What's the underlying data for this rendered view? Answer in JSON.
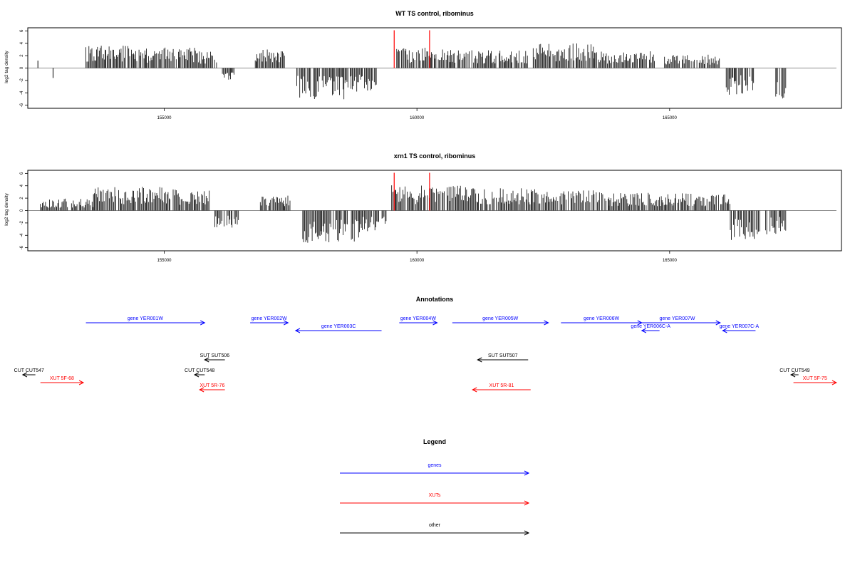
{
  "chart_data": [
    {
      "type": "bar",
      "title": "WT TS control, ribominus",
      "xlabel": "",
      "ylabel": "log2 tag density",
      "xlim": [
        152300,
        168400
      ],
      "ylim": [
        -6.5,
        6.5
      ],
      "xticks": [
        155000,
        160000,
        165000
      ],
      "xtick_labels": [
        "155000",
        "160000",
        "165000"
      ],
      "yticks": [
        6,
        4,
        2,
        0,
        -2,
        -4,
        -6
      ],
      "ytick_labels": [
        "6",
        "4",
        "2",
        "0",
        "-2",
        "-4",
        "-6"
      ],
      "baseline": {
        "from": 152300,
        "to": 168300,
        "y": 0
      },
      "markers": [
        159550,
        160250
      ],
      "marker_color": "#ff0000",
      "bar_color": "#000000",
      "segments": [
        {
          "from": 152500,
          "to": 152500,
          "y": 1.2
        },
        {
          "from": 152800,
          "to": 152800,
          "y": -1.6
        },
        {
          "from": 153450,
          "to": 154400,
          "y": 3.0
        },
        {
          "from": 154400,
          "to": 155700,
          "y": 2.8
        },
        {
          "from": 155700,
          "to": 156050,
          "y": 2.2
        },
        {
          "from": 156150,
          "to": 156400,
          "y": -2.0
        },
        {
          "from": 156800,
          "to": 157400,
          "y": 2.6
        },
        {
          "from": 157600,
          "to": 158700,
          "y": -4.2
        },
        {
          "from": 158700,
          "to": 159200,
          "y": -3.2
        },
        {
          "from": 159600,
          "to": 160700,
          "y": 2.8
        },
        {
          "from": 160700,
          "to": 162200,
          "y": 2.4
        },
        {
          "from": 162300,
          "to": 163500,
          "y": 3.4
        },
        {
          "from": 163500,
          "to": 164700,
          "y": 2.4
        },
        {
          "from": 164900,
          "to": 166000,
          "y": 1.8
        },
        {
          "from": 166100,
          "to": 166700,
          "y": -3.6
        },
        {
          "from": 167100,
          "to": 167300,
          "y": -4.8
        }
      ]
    },
    {
      "type": "bar",
      "title": "xrn1 TS control, ribominus",
      "xlabel": "",
      "ylabel": "log2 tag density",
      "xlim": [
        152300,
        168400
      ],
      "ylim": [
        -6.5,
        6.5
      ],
      "xticks": [
        155000,
        160000,
        165000
      ],
      "xtick_labels": [
        "155000",
        "160000",
        "165000"
      ],
      "yticks": [
        6,
        4,
        2,
        0,
        -2,
        -4,
        -6
      ],
      "ytick_labels": [
        "6",
        "4",
        "2",
        "0",
        "-2",
        "-4",
        "-6"
      ],
      "baseline": {
        "from": 152300,
        "to": 168300,
        "y": 0
      },
      "markers": [
        159550,
        160250
      ],
      "marker_color": "#ff0000",
      "bar_color": "#000000",
      "segments": [
        {
          "from": 152550,
          "to": 153000,
          "y": 1.5
        },
        {
          "from": 153000,
          "to": 153600,
          "y": 1.6
        },
        {
          "from": 153600,
          "to": 155000,
          "y": 3.2
        },
        {
          "from": 155000,
          "to": 155900,
          "y": 3.0
        },
        {
          "from": 156000,
          "to": 156500,
          "y": -2.4
        },
        {
          "from": 156900,
          "to": 157500,
          "y": 2.2
        },
        {
          "from": 157700,
          "to": 158900,
          "y": -4.4
        },
        {
          "from": 158900,
          "to": 159400,
          "y": -2.8
        },
        {
          "from": 159500,
          "to": 161000,
          "y": 3.4
        },
        {
          "from": 161000,
          "to": 162600,
          "y": 3.2
        },
        {
          "from": 162600,
          "to": 163800,
          "y": 2.8
        },
        {
          "from": 163800,
          "to": 165500,
          "y": 2.4
        },
        {
          "from": 165500,
          "to": 166200,
          "y": 2.2
        },
        {
          "from": 166200,
          "to": 166800,
          "y": -4.0
        },
        {
          "from": 166900,
          "to": 167300,
          "y": -3.2
        }
      ]
    },
    {
      "type": "annotation_track",
      "title": "Annotations",
      "xlim": [
        152300,
        168400
      ],
      "features": [
        {
          "label": "gene YER001W",
          "from": 153450,
          "to": 155800,
          "strand": "+",
          "row": 1,
          "color": "#0000ff"
        },
        {
          "label": "gene YER002W",
          "from": 156700,
          "to": 157450,
          "strand": "+",
          "row": 1,
          "color": "#0000ff"
        },
        {
          "label": "gene YER003C",
          "from": 157600,
          "to": 159300,
          "strand": "-",
          "row": 2,
          "color": "#0000ff"
        },
        {
          "label": "gene YER004W",
          "from": 159650,
          "to": 160400,
          "strand": "+",
          "row": 1,
          "color": "#0000ff"
        },
        {
          "label": "gene YER005W",
          "from": 160700,
          "to": 162600,
          "strand": "+",
          "row": 1,
          "color": "#0000ff"
        },
        {
          "label": "gene YER006W",
          "from": 162850,
          "to": 164450,
          "strand": "+",
          "row": 1,
          "color": "#0000ff"
        },
        {
          "label": "gene YER006C-A",
          "from": 164450,
          "to": 164800,
          "strand": "-",
          "row": 2,
          "color": "#0000ff"
        },
        {
          "label": "gene YER007W",
          "from": 164300,
          "to": 166000,
          "strand": "+",
          "row": 1,
          "color": "#0000ff"
        },
        {
          "label": "gene YER007C-A",
          "from": 166050,
          "to": 166700,
          "strand": "-",
          "row": 2,
          "color": "#0000ff"
        },
        {
          "label": "SUT SUT506",
          "from": 155800,
          "to": 156200,
          "strand": "-",
          "row": 4,
          "color": "#000000"
        },
        {
          "label": "SUT SUT507",
          "from": 161200,
          "to": 162200,
          "strand": "-",
          "row": 4,
          "color": "#000000"
        },
        {
          "label": "CUT CUT547",
          "from": 152200,
          "to": 152450,
          "strand": "-",
          "row": 5,
          "color": "#000000"
        },
        {
          "label": "CUT CUT548",
          "from": 155600,
          "to": 155800,
          "strand": "-",
          "row": 5,
          "color": "#000000"
        },
        {
          "label": "CUT CUT549",
          "from": 167400,
          "to": 167550,
          "strand": "-",
          "row": 5,
          "color": "#000000"
        },
        {
          "label": "XUT 5F-68",
          "from": 152550,
          "to": 153400,
          "strand": "+",
          "row": 6,
          "color": "#ff0000"
        },
        {
          "label": "XUT 5R-76",
          "from": 155700,
          "to": 156200,
          "strand": "-",
          "row": 7,
          "color": "#ff0000"
        },
        {
          "label": "XUT 5R-81",
          "from": 161100,
          "to": 162250,
          "strand": "-",
          "row": 7,
          "color": "#ff0000"
        },
        {
          "label": "XUT 5F-75",
          "from": 167450,
          "to": 168300,
          "strand": "+",
          "row": 6,
          "color": "#ff0000"
        }
      ]
    },
    {
      "type": "legend",
      "title": "Legend",
      "entries": [
        {
          "label": "genes",
          "color": "#0000ff"
        },
        {
          "label": "XUTs",
          "color": "#ff0000"
        },
        {
          "label": "other",
          "color": "#000000"
        }
      ]
    }
  ]
}
